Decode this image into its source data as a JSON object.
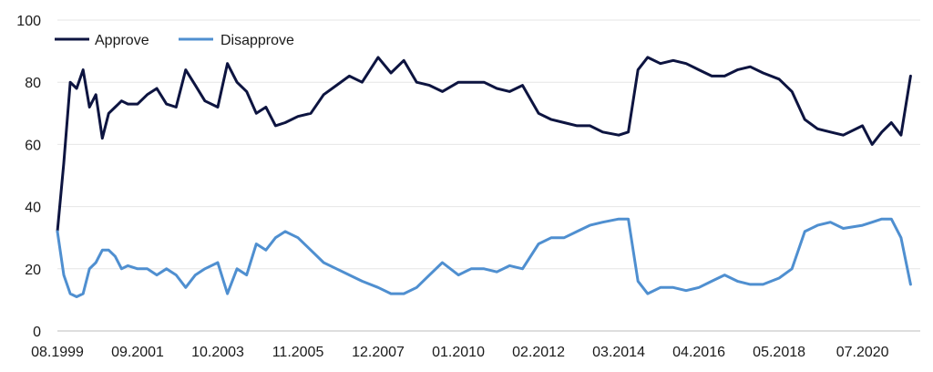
{
  "chart_data": {
    "type": "line",
    "title": "",
    "xlabel": "",
    "ylabel": "",
    "ylim": [
      0,
      100
    ],
    "yticks": [
      0,
      20,
      40,
      60,
      80,
      100
    ],
    "grid": "horizontal",
    "legend_position": "top-left",
    "x_tick_labels": [
      "08.1999",
      "09.2001",
      "10.2003",
      "11.2005",
      "12.2007",
      "01.2010",
      "02.2012",
      "03.2014",
      "04.2016",
      "05.2018",
      "07.2020"
    ],
    "x": [
      "08.1999",
      "10.1999",
      "12.1999",
      "02.2000",
      "04.2000",
      "06.2000",
      "08.2000",
      "10.2000",
      "12.2000",
      "02.2001",
      "04.2001",
      "06.2001",
      "09.2001",
      "12.2001",
      "03.2002",
      "06.2002",
      "09.2002",
      "12.2002",
      "03.2003",
      "06.2003",
      "10.2003",
      "01.2004",
      "04.2004",
      "07.2004",
      "10.2004",
      "01.2005",
      "04.2005",
      "07.2005",
      "11.2005",
      "03.2006",
      "07.2006",
      "11.2006",
      "03.2007",
      "07.2007",
      "12.2007",
      "04.2008",
      "08.2008",
      "12.2008",
      "04.2009",
      "08.2009",
      "01.2010",
      "05.2010",
      "09.2010",
      "01.2011",
      "05.2011",
      "09.2011",
      "02.2012",
      "06.2012",
      "10.2012",
      "02.2013",
      "06.2013",
      "10.2013",
      "03.2014",
      "06.2014",
      "09.2014",
      "12.2014",
      "04.2015",
      "08.2015",
      "12.2015",
      "04.2016",
      "08.2016",
      "12.2016",
      "04.2017",
      "08.2017",
      "12.2017",
      "05.2018",
      "09.2018",
      "01.2019",
      "05.2019",
      "09.2019",
      "01.2020",
      "07.2020",
      "10.2020",
      "01.2021",
      "04.2021",
      "07.2021",
      "10.2021"
    ],
    "series": [
      {
        "name": "Approve",
        "color": "#0d1440",
        "values": [
          32,
          54,
          80,
          78,
          84,
          72,
          76,
          62,
          70,
          72,
          74,
          73,
          73,
          76,
          78,
          73,
          72,
          84,
          79,
          74,
          72,
          86,
          80,
          77,
          70,
          72,
          66,
          67,
          69,
          70,
          76,
          79,
          82,
          80,
          88,
          83,
          87,
          80,
          79,
          77,
          80,
          80,
          80,
          78,
          77,
          79,
          70,
          68,
          67,
          66,
          66,
          64,
          63,
          64,
          84,
          88,
          86,
          87,
          86,
          84,
          82,
          82,
          84,
          85,
          83,
          81,
          77,
          68,
          65,
          64,
          63,
          66,
          60,
          64,
          67,
          63,
          82
        ]
      },
      {
        "name": "Disapprove",
        "color": "#4f8fd0",
        "values": [
          32,
          18,
          12,
          11,
          12,
          20,
          22,
          26,
          26,
          24,
          20,
          21,
          20,
          20,
          18,
          20,
          18,
          14,
          18,
          20,
          22,
          12,
          20,
          18,
          28,
          26,
          30,
          32,
          30,
          26,
          22,
          20,
          18,
          16,
          14,
          12,
          12,
          14,
          18,
          22,
          18,
          20,
          20,
          19,
          21,
          20,
          28,
          30,
          30,
          32,
          34,
          35,
          36,
          36,
          16,
          12,
          14,
          14,
          13,
          14,
          16,
          18,
          16,
          15,
          15,
          17,
          20,
          32,
          34,
          35,
          33,
          34,
          35,
          36,
          36,
          30,
          15
        ]
      }
    ]
  }
}
